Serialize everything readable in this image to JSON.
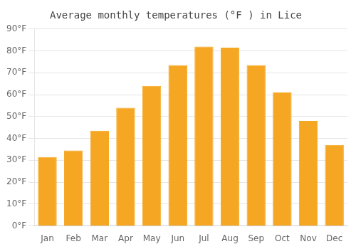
{
  "chart_data": {
    "type": "bar",
    "title": "Average monthly temperatures (°F ) in Lice",
    "categories": [
      "Jan",
      "Feb",
      "Mar",
      "Apr",
      "May",
      "Jun",
      "Jul",
      "Aug",
      "Sep",
      "Oct",
      "Nov",
      "Dec"
    ],
    "values": [
      31.5,
      34.5,
      43.5,
      54,
      64,
      73.5,
      82,
      81.5,
      73.5,
      61,
      48,
      37
    ],
    "color": "#F5A623",
    "ylim": [
      0,
      90
    ],
    "yticks": [
      {
        "value": 0,
        "label": "0°F"
      },
      {
        "value": 10,
        "label": "10°F"
      },
      {
        "value": 20,
        "label": "20°F"
      },
      {
        "value": 30,
        "label": "30°F"
      },
      {
        "value": 40,
        "label": "40°F"
      },
      {
        "value": 50,
        "label": "50°F"
      },
      {
        "value": 60,
        "label": "60°F"
      },
      {
        "value": 70,
        "label": "70°F"
      },
      {
        "value": 80,
        "label": "80°F"
      },
      {
        "value": 90,
        "label": "90°F"
      }
    ],
    "grid": true
  }
}
